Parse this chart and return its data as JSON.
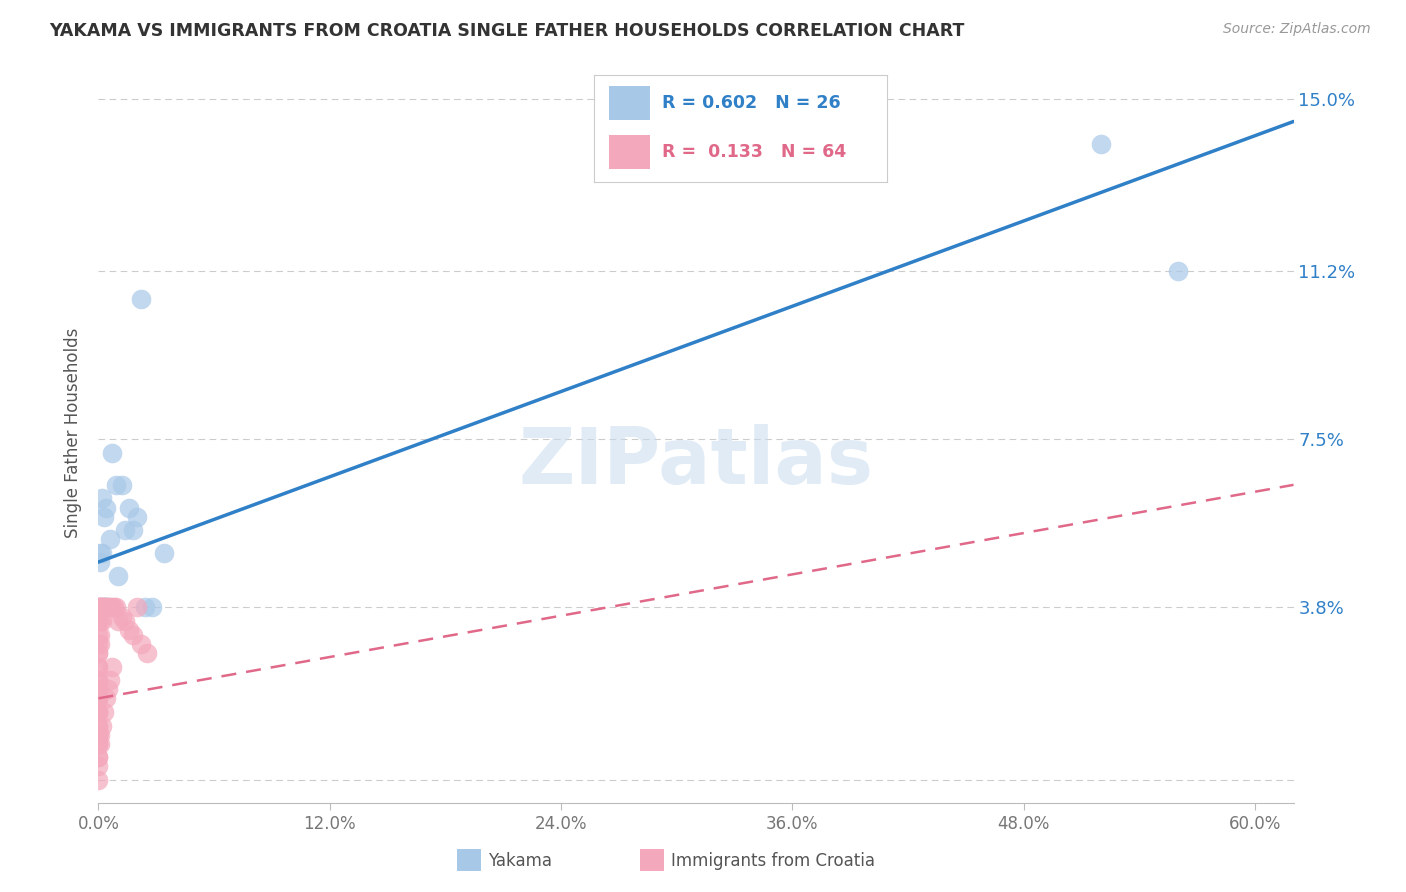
{
  "title": "YAKAMA VS IMMIGRANTS FROM CROATIA SINGLE FATHER HOUSEHOLDS CORRELATION CHART",
  "source": "Source: ZipAtlas.com",
  "ylabel": "Single Father Households",
  "x_tick_values": [
    0.0,
    0.12,
    0.24,
    0.36,
    0.48,
    0.6
  ],
  "x_tick_labels": [
    "0.0%",
    "12.0%",
    "24.0%",
    "36.0%",
    "48.0%",
    "60.0%"
  ],
  "y_tick_values": [
    0.0,
    0.038,
    0.075,
    0.112,
    0.15
  ],
  "y_tick_labels": [
    "",
    "3.8%",
    "7.5%",
    "11.2%",
    "15.0%"
  ],
  "xlim": [
    0.0,
    0.62
  ],
  "ylim": [
    -0.005,
    0.158
  ],
  "legend_label1": "Yakama",
  "legend_label2": "Immigrants from Croatia",
  "R1": 0.602,
  "N1": 26,
  "R2": 0.133,
  "N2": 64,
  "color_blue": "#A8C8E8",
  "color_pink": "#F4A8BC",
  "color_blue_line": "#3080C8",
  "color_pink_line": "#E06888",
  "watermark": "ZIPatlas",
  "yakama_x": [
    0.001,
    0.001,
    0.002,
    0.003,
    0.003,
    0.004,
    0.005,
    0.006,
    0.007,
    0.009,
    0.01,
    0.012,
    0.014,
    0.016,
    0.018,
    0.02,
    0.024,
    0.028,
    0.001,
    0.002,
    0.003,
    0.004,
    0.022,
    0.034,
    0.52,
    0.56
  ],
  "yakama_y": [
    0.05,
    0.048,
    0.062,
    0.058,
    0.038,
    0.06,
    0.038,
    0.053,
    0.072,
    0.065,
    0.045,
    0.065,
    0.055,
    0.06,
    0.055,
    0.058,
    0.038,
    0.038,
    0.038,
    0.05,
    0.038,
    0.038,
    0.106,
    0.05,
    0.14,
    0.112
  ],
  "croatia_x": [
    0.0,
    0.0,
    0.0,
    0.0,
    0.0,
    0.0,
    0.0,
    0.0,
    0.0,
    0.0,
    0.0,
    0.0,
    0.0,
    0.0,
    0.0,
    0.0,
    0.0,
    0.0,
    0.0,
    0.0,
    0.0,
    0.0,
    0.0,
    0.0,
    0.0,
    0.0,
    0.0,
    0.0,
    0.0,
    0.0,
    0.001,
    0.001,
    0.001,
    0.001,
    0.001,
    0.002,
    0.002,
    0.002,
    0.003,
    0.003,
    0.004,
    0.005,
    0.006,
    0.007,
    0.008,
    0.009,
    0.01,
    0.012,
    0.014,
    0.016,
    0.018,
    0.02,
    0.022,
    0.025,
    0.0,
    0.0,
    0.001,
    0.001,
    0.002,
    0.003,
    0.004,
    0.005,
    0.006,
    0.007
  ],
  "croatia_y": [
    0.0,
    0.003,
    0.005,
    0.008,
    0.01,
    0.01,
    0.012,
    0.015,
    0.015,
    0.018,
    0.018,
    0.02,
    0.02,
    0.022,
    0.025,
    0.025,
    0.028,
    0.028,
    0.03,
    0.032,
    0.035,
    0.035,
    0.038,
    0.038,
    0.01,
    0.012,
    0.015,
    0.018,
    0.02,
    0.022,
    0.03,
    0.032,
    0.035,
    0.038,
    0.038,
    0.035,
    0.038,
    0.038,
    0.038,
    0.038,
    0.038,
    0.038,
    0.038,
    0.038,
    0.038,
    0.038,
    0.035,
    0.036,
    0.035,
    0.033,
    0.032,
    0.038,
    0.03,
    0.028,
    0.005,
    0.008,
    0.008,
    0.01,
    0.012,
    0.015,
    0.018,
    0.02,
    0.022,
    0.025
  ]
}
